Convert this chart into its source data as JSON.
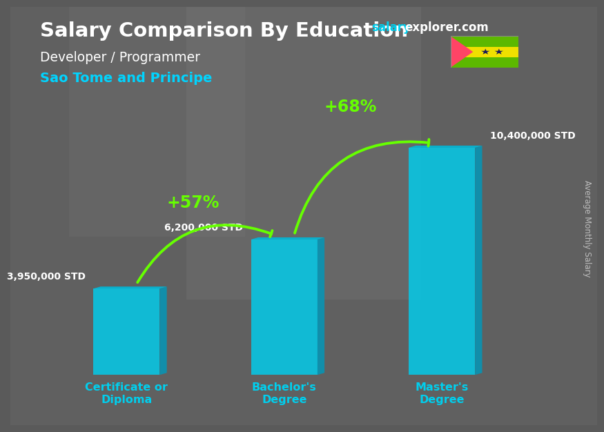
{
  "title": "Salary Comparison By Education",
  "subtitle_job": "Developer / Programmer",
  "subtitle_location": "Sao Tome and Principe",
  "ylabel": "Average Monthly Salary",
  "website_salary": "salary",
  "website_rest": "explorer.com",
  "categories": [
    "Certificate or\nDiploma",
    "Bachelor's\nDegree",
    "Master's\nDegree"
  ],
  "values": [
    3950000,
    6200000,
    10400000
  ],
  "value_labels": [
    "3,950,000 STD",
    "6,200,000 STD",
    "10,400,000 STD"
  ],
  "bar_color_face": "#00cfee",
  "bar_color_side": "#0099bb",
  "bar_color_top": "#00b8d9",
  "pct_labels": [
    "+57%",
    "+68%"
  ],
  "background_color": "#5a5a5a",
  "title_color": "#ffffff",
  "subtitle_job_color": "#ffffff",
  "subtitle_location_color": "#00d4ff",
  "value_label_color": "#ffffff",
  "pct_color": "#66ff00",
  "category_label_color": "#00cfee",
  "ylabel_color": "#cccccc",
  "website_color_salary": "#00cfee",
  "website_color_rest": "#ffffff",
  "flag_green": "#5cb800",
  "flag_yellow": "#f0e000",
  "flag_red": "#ff4466",
  "flag_star": "#1a1a5a"
}
